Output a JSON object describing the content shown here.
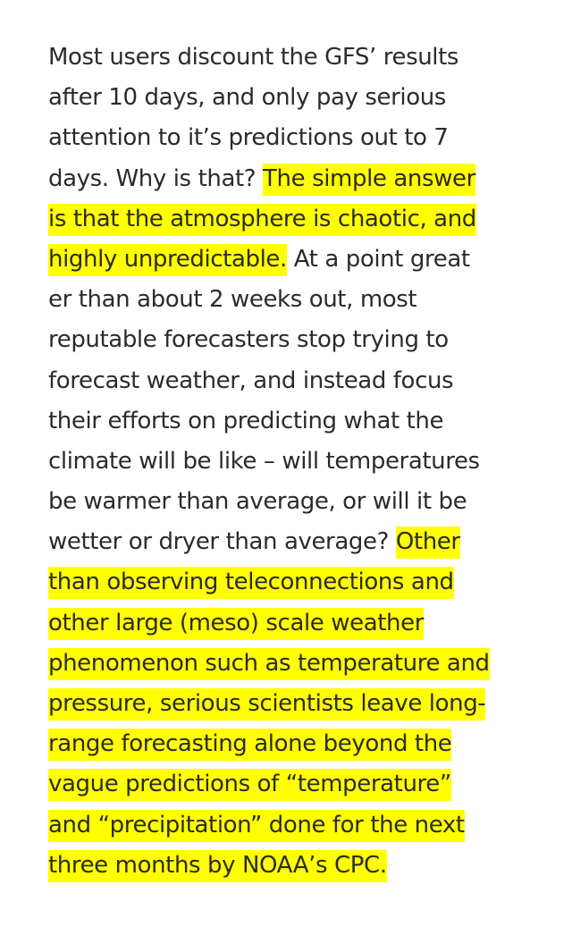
{
  "article": {
    "lines": [
      [
        {
          "text": "Most users discount the GFS’ results",
          "highlight": false
        }
      ],
      [
        {
          "text": "after 10 days, and only pay serious",
          "highlight": false
        }
      ],
      [
        {
          "text": "attention to it’s predictions out to 7",
          "highlight": false
        }
      ],
      [
        {
          "text": "days.  Why is that? ",
          "highlight": false
        },
        {
          "text": "The simple answer",
          "highlight": true
        }
      ],
      [
        {
          "text": "is that the atmosphere is chaotic, and",
          "highlight": true
        }
      ],
      [
        {
          "text": "highly unpredictable.",
          "highlight": true
        },
        {
          "text": " At a point great",
          "highlight": false
        }
      ],
      [
        {
          "text": "er than about 2 weeks out, most",
          "highlight": false
        }
      ],
      [
        {
          "text": "reputable forecasters stop trying to",
          "highlight": false
        }
      ],
      [
        {
          "text": "forecast weather, and instead focus",
          "highlight": false
        }
      ],
      [
        {
          "text": "their efforts on predicting what the",
          "highlight": false
        }
      ],
      [
        {
          "text": "climate will be like – will temperatures",
          "highlight": false
        }
      ],
      [
        {
          "text": "be warmer than average, or will it be",
          "highlight": false
        }
      ],
      [
        {
          "text": "wetter or dryer than average? ",
          "highlight": false
        },
        {
          "text": "Other",
          "highlight": true
        }
      ],
      [
        {
          "text": "than observing teleconnections and",
          "highlight": true
        }
      ],
      [
        {
          "text": "other large (meso) scale weather",
          "highlight": true
        }
      ],
      [
        {
          "text": "phenomenon such as temperature and",
          "highlight": true
        }
      ],
      [
        {
          "text": "pressure, serious scientists leave long-",
          "highlight": true
        }
      ],
      [
        {
          "text": "range forecasting alone beyond the",
          "highlight": true
        }
      ],
      [
        {
          "text": "vague predictions of “temperature”",
          "highlight": true
        }
      ],
      [
        {
          "text": "and “precipitation” done for the next",
          "highlight": true
        }
      ],
      [
        {
          "text": "three months by NOAA’s CPC.",
          "highlight": true
        }
      ]
    ]
  },
  "colors": {
    "text": "#2b2b2b",
    "highlight": "#ffff00",
    "background": "#ffffff"
  }
}
